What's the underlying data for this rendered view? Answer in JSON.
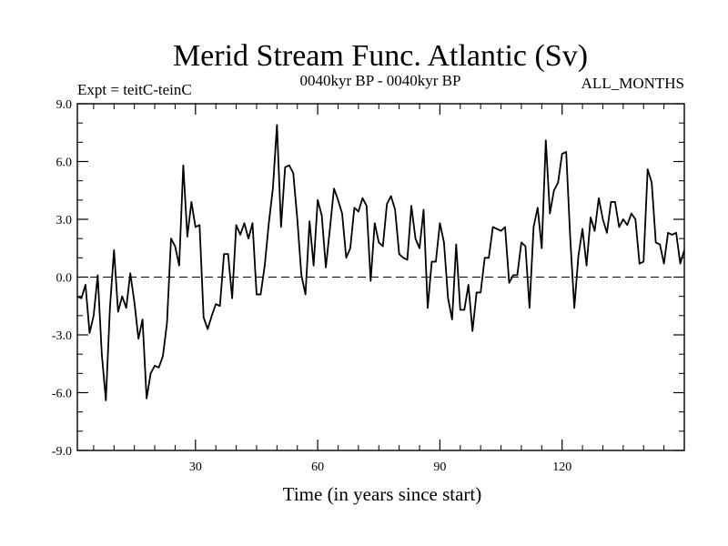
{
  "chart_data": {
    "type": "line",
    "title": "Merid Stream Func. Atlantic (Sv)",
    "subtitle_left": "Expt = teitC-teinC",
    "subtitle_center": "0040kyr BP - 0040kyr BP",
    "subtitle_right": "ALL_MONTHS",
    "xlabel": "Time (in years since start)",
    "ylabel": "",
    "xlim": [
      1,
      150
    ],
    "ylim": [
      -9.0,
      9.0
    ],
    "x_ticks": [
      30,
      60,
      90,
      120
    ],
    "x_tick_labels": [
      "30",
      "60",
      "90",
      "120"
    ],
    "y_ticks": [
      9.0,
      6.0,
      3.0,
      0.0,
      -3.0,
      -6.0,
      -9.0
    ],
    "y_tick_labels": [
      "9.0",
      "6.0",
      "3.0",
      "0.0",
      "-3.0",
      "-6.0",
      "-9.0"
    ],
    "zero_line": "dashed",
    "series": [
      {
        "name": "Merid Stream Func",
        "x_start": 1,
        "x_step": 1,
        "values": [
          -1.0,
          -1.1,
          -0.4,
          -2.9,
          -2.0,
          0.1,
          -4.0,
          -6.4,
          -1.6,
          1.4,
          -1.8,
          -1.0,
          -1.6,
          0.2,
          -1.3,
          -3.2,
          -2.2,
          -6.3,
          -5.0,
          -4.6,
          -4.7,
          -4.1,
          -2.4,
          2.0,
          1.6,
          0.6,
          5.8,
          2.1,
          3.9,
          2.6,
          2.7,
          -2.1,
          -2.7,
          -2.0,
          -1.4,
          -1.5,
          1.2,
          1.2,
          -1.1,
          2.7,
          2.2,
          2.8,
          2.0,
          2.8,
          -0.9,
          -0.9,
          0.6,
          2.8,
          4.6,
          7.9,
          2.6,
          5.7,
          5.8,
          5.4,
          3.0,
          0.1,
          -0.9,
          2.9,
          0.6,
          4.0,
          3.2,
          0.5,
          2.5,
          4.6,
          4.0,
          3.3,
          1.0,
          1.5,
          3.6,
          3.4,
          4.1,
          3.7,
          -0.2,
          2.8,
          1.8,
          1.6,
          3.8,
          4.2,
          3.5,
          1.2,
          1.0,
          0.9,
          3.7,
          2.0,
          1.5,
          3.5,
          -1.6,
          0.8,
          0.8,
          2.8,
          1.8,
          -1.1,
          -2.2,
          1.7,
          -1.7,
          -1.7,
          -0.4,
          -2.8,
          -0.8,
          -0.8,
          1.0,
          1.0,
          2.6,
          2.5,
          2.4,
          2.6,
          -0.3,
          0.1,
          0.1,
          1.8,
          1.6,
          -1.6,
          2.6,
          3.6,
          1.5,
          7.1,
          3.3,
          4.5,
          4.9,
          6.4,
          6.5,
          2.0,
          -1.6,
          1.1,
          2.5,
          0.6,
          3.1,
          2.4,
          4.1,
          3.0,
          2.3,
          3.9,
          3.9,
          2.6,
          3.0,
          2.7,
          3.3,
          3.0,
          0.7,
          0.8,
          5.6,
          4.9,
          1.8,
          1.7,
          0.7,
          2.3,
          2.2,
          2.3,
          0.7,
          1.4
        ]
      }
    ]
  }
}
